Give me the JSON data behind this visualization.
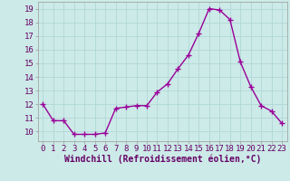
{
  "x": [
    0,
    1,
    2,
    3,
    4,
    5,
    6,
    7,
    8,
    9,
    10,
    11,
    12,
    13,
    14,
    15,
    16,
    17,
    18,
    19,
    20,
    21,
    22,
    23
  ],
  "y": [
    12.0,
    10.8,
    10.8,
    9.8,
    9.8,
    9.8,
    9.9,
    11.7,
    11.8,
    11.9,
    11.9,
    12.9,
    13.5,
    14.6,
    15.6,
    17.2,
    19.0,
    18.9,
    18.2,
    15.1,
    13.3,
    11.9,
    11.5,
    10.6
  ],
  "line_color": "#990099",
  "marker": "+",
  "marker_size": 4,
  "linewidth": 1.0,
  "xlabel": "Windchill (Refroidissement éolien,°C)",
  "xlabel_fontsize": 7,
  "xlim": [
    -0.5,
    23.5
  ],
  "ylim": [
    9.3,
    19.5
  ],
  "yticks": [
    10,
    11,
    12,
    13,
    14,
    15,
    16,
    17,
    18,
    19
  ],
  "xticks": [
    0,
    1,
    2,
    3,
    4,
    5,
    6,
    7,
    8,
    9,
    10,
    11,
    12,
    13,
    14,
    15,
    16,
    17,
    18,
    19,
    20,
    21,
    22,
    23
  ],
  "grid_color": "#b0d8d8",
  "bg_color": "#cceae7",
  "tick_labelsize": 6.5,
  "marker_color": "#990099",
  "spine_color": "#999999"
}
